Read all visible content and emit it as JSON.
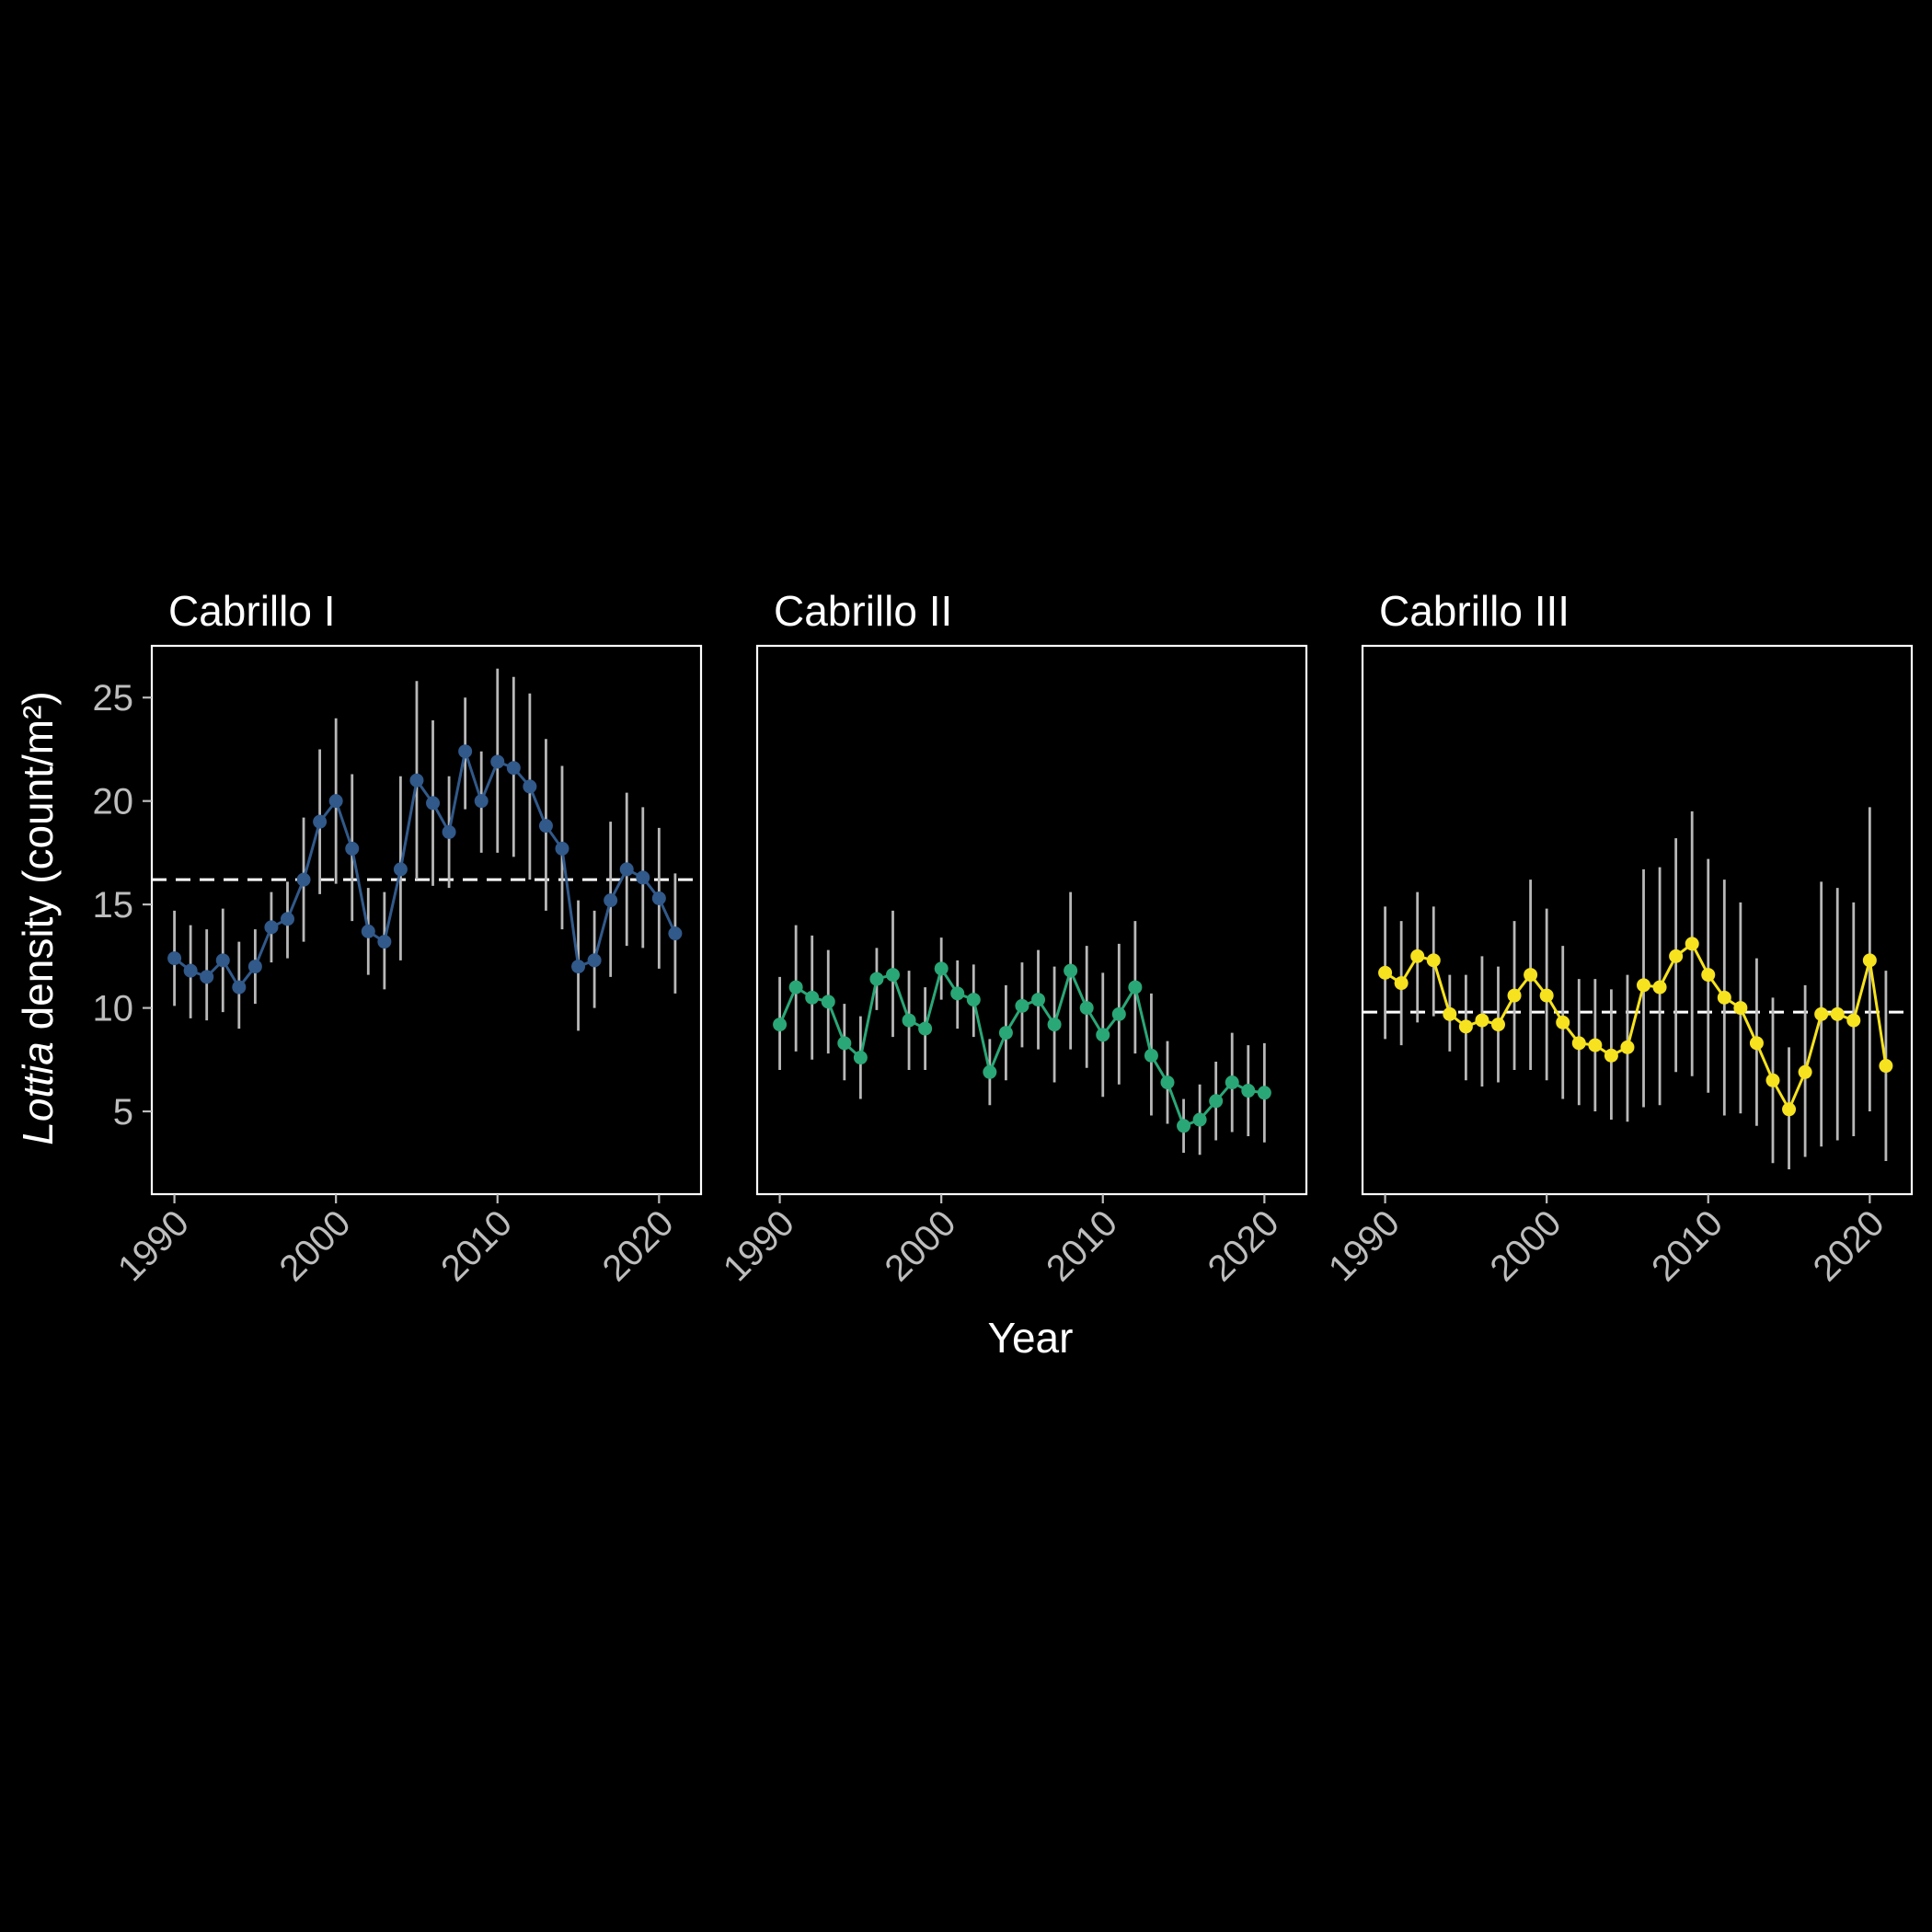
{
  "chart_data": {
    "type": "line",
    "xlabel": "Year",
    "ylabel_italic": "Lottia",
    "ylabel_rest": " density (count/m²)",
    "xticks": [
      1990,
      2000,
      2010,
      2020
    ],
    "yticks": [
      5,
      10,
      15,
      20,
      25
    ],
    "xlim": [
      1988.6,
      2022.6
    ],
    "ylim": [
      1.0,
      27.5
    ],
    "colors": {
      "background": "#000000",
      "errorbar": "#b8b8b8",
      "reference_line": "#ffffff",
      "panel_border": "#ffffff"
    },
    "panels": [
      {
        "title": "Cabrillo I",
        "color": "#31598a",
        "reference": 16.2,
        "points": [
          {
            "x": 1990,
            "y": 12.4,
            "lo": 10.1,
            "hi": 14.7
          },
          {
            "x": 1991,
            "y": 11.8,
            "lo": 9.5,
            "hi": 14.0
          },
          {
            "x": 1992,
            "y": 11.5,
            "lo": 9.4,
            "hi": 13.8
          },
          {
            "x": 1993,
            "y": 12.3,
            "lo": 9.8,
            "hi": 14.8
          },
          {
            "x": 1994,
            "y": 11.0,
            "lo": 9.0,
            "hi": 13.2
          },
          {
            "x": 1995,
            "y": 12.0,
            "lo": 10.2,
            "hi": 13.8
          },
          {
            "x": 1996,
            "y": 13.9,
            "lo": 12.2,
            "hi": 15.6
          },
          {
            "x": 1997,
            "y": 14.3,
            "lo": 12.4,
            "hi": 16.1
          },
          {
            "x": 1998,
            "y": 16.2,
            "lo": 13.2,
            "hi": 19.2
          },
          {
            "x": 1999,
            "y": 19.0,
            "lo": 15.5,
            "hi": 22.5
          },
          {
            "x": 2000,
            "y": 20.0,
            "lo": 16.0,
            "hi": 24.0
          },
          {
            "x": 2001,
            "y": 17.7,
            "lo": 14.2,
            "hi": 21.3
          },
          {
            "x": 2002,
            "y": 13.7,
            "lo": 11.6,
            "hi": 15.8
          },
          {
            "x": 2003,
            "y": 13.2,
            "lo": 10.9,
            "hi": 15.6
          },
          {
            "x": 2004,
            "y": 16.7,
            "lo": 12.3,
            "hi": 21.2
          },
          {
            "x": 2005,
            "y": 21.0,
            "lo": 16.2,
            "hi": 25.8
          },
          {
            "x": 2006,
            "y": 19.9,
            "lo": 15.9,
            "hi": 23.9
          },
          {
            "x": 2007,
            "y": 18.5,
            "lo": 15.8,
            "hi": 21.2
          },
          {
            "x": 2008,
            "y": 22.4,
            "lo": 19.6,
            "hi": 25.0
          },
          {
            "x": 2009,
            "y": 20.0,
            "lo": 17.5,
            "hi": 22.4
          },
          {
            "x": 2010,
            "y": 21.9,
            "lo": 17.5,
            "hi": 26.4
          },
          {
            "x": 2011,
            "y": 21.6,
            "lo": 17.3,
            "hi": 26.0
          },
          {
            "x": 2012,
            "y": 20.7,
            "lo": 16.2,
            "hi": 25.2
          },
          {
            "x": 2013,
            "y": 18.8,
            "lo": 14.7,
            "hi": 23.0
          },
          {
            "x": 2014,
            "y": 17.7,
            "lo": 13.8,
            "hi": 21.7
          },
          {
            "x": 2015,
            "y": 12.0,
            "lo": 8.9,
            "hi": 15.2
          },
          {
            "x": 2016,
            "y": 12.3,
            "lo": 10.0,
            "hi": 14.7
          },
          {
            "x": 2017,
            "y": 15.2,
            "lo": 11.5,
            "hi": 19.0
          },
          {
            "x": 2018,
            "y": 16.7,
            "lo": 13.0,
            "hi": 20.4
          },
          {
            "x": 2019,
            "y": 16.3,
            "lo": 12.9,
            "hi": 19.7
          },
          {
            "x": 2020,
            "y": 15.3,
            "lo": 11.9,
            "hi": 18.7
          },
          {
            "x": 2021,
            "y": 13.6,
            "lo": 10.7,
            "hi": 16.5
          }
        ]
      },
      {
        "title": "Cabrillo II",
        "color": "#2aa777",
        "reference": null,
        "points": [
          {
            "x": 1990,
            "y": 9.2,
            "lo": 7.0,
            "hi": 11.5
          },
          {
            "x": 1991,
            "y": 11.0,
            "lo": 7.9,
            "hi": 14.0
          },
          {
            "x": 1992,
            "y": 10.5,
            "lo": 7.5,
            "hi": 13.5
          },
          {
            "x": 1993,
            "y": 10.3,
            "lo": 7.8,
            "hi": 12.8
          },
          {
            "x": 1994,
            "y": 8.3,
            "lo": 6.5,
            "hi": 10.2
          },
          {
            "x": 1995,
            "y": 7.6,
            "lo": 5.6,
            "hi": 9.6
          },
          {
            "x": 1996,
            "y": 11.4,
            "lo": 9.9,
            "hi": 12.9
          },
          {
            "x": 1997,
            "y": 11.6,
            "lo": 8.6,
            "hi": 14.7
          },
          {
            "x": 1998,
            "y": 9.4,
            "lo": 7.0,
            "hi": 11.8
          },
          {
            "x": 1999,
            "y": 9.0,
            "lo": 7.0,
            "hi": 11.0
          },
          {
            "x": 2000,
            "y": 11.9,
            "lo": 10.4,
            "hi": 13.4
          },
          {
            "x": 2001,
            "y": 10.7,
            "lo": 9.0,
            "hi": 12.3
          },
          {
            "x": 2002,
            "y": 10.4,
            "lo": 8.6,
            "hi": 12.1
          },
          {
            "x": 2003,
            "y": 6.9,
            "lo": 5.3,
            "hi": 8.5
          },
          {
            "x": 2004,
            "y": 8.8,
            "lo": 6.5,
            "hi": 11.1
          },
          {
            "x": 2005,
            "y": 10.1,
            "lo": 8.1,
            "hi": 12.2
          },
          {
            "x": 2006,
            "y": 10.4,
            "lo": 8.0,
            "hi": 12.8
          },
          {
            "x": 2007,
            "y": 9.2,
            "lo": 6.4,
            "hi": 12.0
          },
          {
            "x": 2008,
            "y": 11.8,
            "lo": 8.0,
            "hi": 15.6
          },
          {
            "x": 2009,
            "y": 10.0,
            "lo": 7.1,
            "hi": 13.0
          },
          {
            "x": 2010,
            "y": 8.7,
            "lo": 5.7,
            "hi": 11.7
          },
          {
            "x": 2011,
            "y": 9.7,
            "lo": 6.3,
            "hi": 13.1
          },
          {
            "x": 2012,
            "y": 11.0,
            "lo": 7.8,
            "hi": 14.2
          },
          {
            "x": 2013,
            "y": 7.7,
            "lo": 4.8,
            "hi": 10.7
          },
          {
            "x": 2014,
            "y": 6.4,
            "lo": 4.4,
            "hi": 8.4
          },
          {
            "x": 2015,
            "y": 4.3,
            "lo": 3.0,
            "hi": 5.6
          },
          {
            "x": 2016,
            "y": 4.6,
            "lo": 2.9,
            "hi": 6.3
          },
          {
            "x": 2017,
            "y": 5.5,
            "lo": 3.6,
            "hi": 7.4
          },
          {
            "x": 2018,
            "y": 6.4,
            "lo": 4.0,
            "hi": 8.8
          },
          {
            "x": 2019,
            "y": 6.0,
            "lo": 3.8,
            "hi": 8.2
          },
          {
            "x": 2020,
            "y": 5.9,
            "lo": 3.5,
            "hi": 8.3
          }
        ]
      },
      {
        "title": "Cabrillo III",
        "color": "#f6e21f",
        "reference": 9.8,
        "points": [
          {
            "x": 1990,
            "y": 11.7,
            "lo": 8.5,
            "hi": 14.9
          },
          {
            "x": 1991,
            "y": 11.2,
            "lo": 8.2,
            "hi": 14.2
          },
          {
            "x": 1992,
            "y": 12.5,
            "lo": 9.3,
            "hi": 15.6
          },
          {
            "x": 1993,
            "y": 12.3,
            "lo": 9.6,
            "hi": 14.9
          },
          {
            "x": 1994,
            "y": 9.7,
            "lo": 7.9,
            "hi": 11.6
          },
          {
            "x": 1995,
            "y": 9.1,
            "lo": 6.5,
            "hi": 11.6
          },
          {
            "x": 1996,
            "y": 9.4,
            "lo": 6.2,
            "hi": 12.5
          },
          {
            "x": 1997,
            "y": 9.2,
            "lo": 6.4,
            "hi": 12.0
          },
          {
            "x": 1998,
            "y": 10.6,
            "lo": 7.0,
            "hi": 14.2
          },
          {
            "x": 1999,
            "y": 11.6,
            "lo": 7.0,
            "hi": 16.2
          },
          {
            "x": 2000,
            "y": 10.6,
            "lo": 6.5,
            "hi": 14.8
          },
          {
            "x": 2001,
            "y": 9.3,
            "lo": 5.6,
            "hi": 13.0
          },
          {
            "x": 2002,
            "y": 8.3,
            "lo": 5.3,
            "hi": 11.4
          },
          {
            "x": 2003,
            "y": 8.2,
            "lo": 5.0,
            "hi": 11.4
          },
          {
            "x": 2004,
            "y": 7.7,
            "lo": 4.6,
            "hi": 10.9
          },
          {
            "x": 2005,
            "y": 8.1,
            "lo": 4.5,
            "hi": 11.6
          },
          {
            "x": 2006,
            "y": 11.1,
            "lo": 5.2,
            "hi": 16.7
          },
          {
            "x": 2007,
            "y": 11.0,
            "lo": 5.3,
            "hi": 16.8
          },
          {
            "x": 2008,
            "y": 12.5,
            "lo": 6.9,
            "hi": 18.2
          },
          {
            "x": 2009,
            "y": 13.1,
            "lo": 6.7,
            "hi": 19.5
          },
          {
            "x": 2010,
            "y": 11.6,
            "lo": 5.9,
            "hi": 17.2
          },
          {
            "x": 2011,
            "y": 10.5,
            "lo": 4.8,
            "hi": 16.2
          },
          {
            "x": 2012,
            "y": 10.0,
            "lo": 4.9,
            "hi": 15.1
          },
          {
            "x": 2013,
            "y": 8.3,
            "lo": 4.3,
            "hi": 12.4
          },
          {
            "x": 2014,
            "y": 6.5,
            "lo": 2.5,
            "hi": 10.5
          },
          {
            "x": 2015,
            "y": 5.1,
            "lo": 2.2,
            "hi": 8.1
          },
          {
            "x": 2016,
            "y": 6.9,
            "lo": 2.8,
            "hi": 11.1
          },
          {
            "x": 2017,
            "y": 9.7,
            "lo": 3.3,
            "hi": 16.1
          },
          {
            "x": 2018,
            "y": 9.7,
            "lo": 3.6,
            "hi": 15.8
          },
          {
            "x": 2019,
            "y": 9.4,
            "lo": 3.8,
            "hi": 15.1
          },
          {
            "x": 2020,
            "y": 12.3,
            "lo": 5.0,
            "hi": 19.7
          },
          {
            "x": 2021,
            "y": 7.2,
            "lo": 2.6,
            "hi": 11.8
          }
        ]
      }
    ]
  }
}
